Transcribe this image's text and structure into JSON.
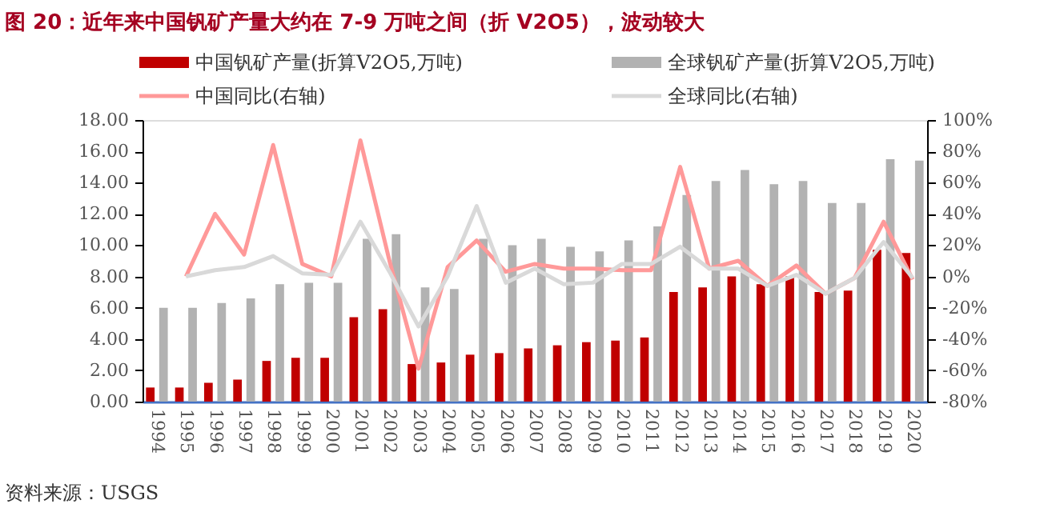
{
  "chart_data": {
    "type": "bar",
    "title": "图 20：近年来中国钒矿产量大约在 7-9 万吨之间（折 V2O5），波动较大",
    "categories": [
      "1994",
      "1995",
      "1996",
      "1997",
      "1998",
      "1999",
      "2000",
      "2001",
      "2002",
      "2003",
      "2004",
      "2005",
      "2006",
      "2007",
      "2008",
      "2009",
      "2010",
      "2011",
      "2012",
      "2013",
      "2014",
      "2015",
      "2016",
      "2017",
      "2018",
      "2019",
      "2020"
    ],
    "series": [
      {
        "name": "中国钒矿产量(折算V2O5,万吨)",
        "color": "#c00000",
        "values": [
          0.9,
          0.9,
          1.2,
          1.4,
          2.6,
          2.8,
          2.8,
          5.4,
          5.9,
          2.4,
          2.5,
          3.0,
          3.1,
          3.4,
          3.6,
          3.8,
          3.9,
          4.1,
          7.0,
          7.3,
          8.0,
          7.5,
          8.0,
          7.0,
          7.1,
          9.7,
          9.5
        ]
      },
      {
        "name": "全球钒矿产量(折算V2O5,万吨)",
        "color": "#b2b2b2",
        "values": [
          6.0,
          6.0,
          6.3,
          6.6,
          7.5,
          7.6,
          7.6,
          10.4,
          10.7,
          7.3,
          7.2,
          10.4,
          10.0,
          10.4,
          9.9,
          9.6,
          10.3,
          11.2,
          13.2,
          14.1,
          14.8,
          13.9,
          14.1,
          12.7,
          12.7,
          15.5,
          15.4
        ]
      },
      {
        "name": "中国同比(右轴)",
        "type": "line",
        "axis": "y2",
        "color": "#ff9999",
        "values": [
          null,
          0,
          40,
          14,
          84,
          8,
          0,
          87,
          10,
          -59,
          6,
          23,
          3,
          8,
          5,
          5,
          4,
          4,
          70,
          5,
          10,
          -6,
          7,
          -11,
          -1,
          35,
          -2
        ]
      },
      {
        "name": "全球同比(右轴)",
        "type": "line",
        "axis": "y2",
        "color": "#d9d9d9",
        "values": [
          null,
          0,
          4,
          6,
          13,
          2,
          1,
          35,
          3,
          -32,
          0,
          45,
          -4,
          5,
          -5,
          -4,
          8,
          8,
          19,
          5,
          5,
          -6,
          1,
          -11,
          -1,
          22,
          -1
        ]
      }
    ],
    "ylim": [
      0,
      18
    ],
    "yticks": [
      {
        "value": 0,
        "label": "0.00"
      },
      {
        "value": 2,
        "label": "2.00"
      },
      {
        "value": 4,
        "label": "4.00"
      },
      {
        "value": 6,
        "label": "6.00"
      },
      {
        "value": 8,
        "label": "8.00"
      },
      {
        "value": 10,
        "label": "10.00"
      },
      {
        "value": 12,
        "label": "12.00"
      },
      {
        "value": 14,
        "label": "14.00"
      },
      {
        "value": 16,
        "label": "16.00"
      },
      {
        "value": 18,
        "label": "18.00"
      }
    ],
    "y2lim": [
      -80,
      100
    ],
    "y2ticks": [
      {
        "value": -80,
        "label": "-80%"
      },
      {
        "value": -60,
        "label": "-60%"
      },
      {
        "value": -40,
        "label": "-40%"
      },
      {
        "value": -20,
        "label": "-20%"
      },
      {
        "value": 0,
        "label": "0%"
      },
      {
        "value": 20,
        "label": "20%"
      },
      {
        "value": 40,
        "label": "40%"
      },
      {
        "value": 60,
        "label": "60%"
      },
      {
        "value": 80,
        "label": "80%"
      },
      {
        "value": 100,
        "label": "100%"
      }
    ],
    "grid": false,
    "legend": "top",
    "annotations": [
      "资料来源：USGS"
    ]
  }
}
